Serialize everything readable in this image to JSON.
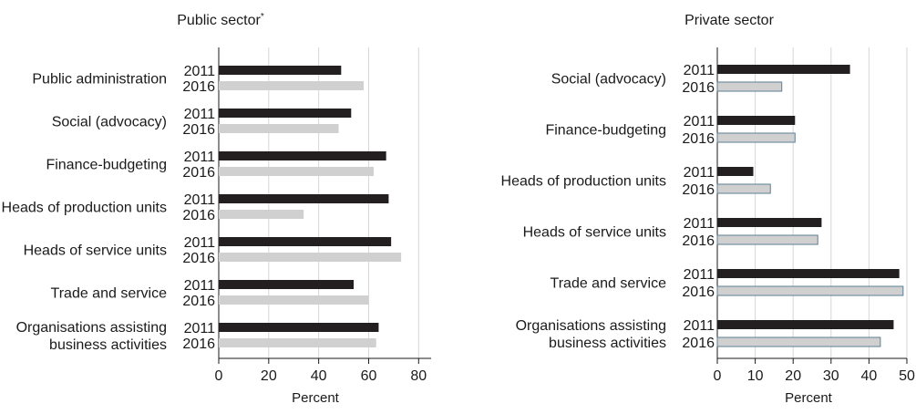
{
  "chart_data": [
    {
      "type": "bar",
      "orientation": "horizontal",
      "title": "Public sector",
      "title_marker": "*",
      "xlabel": "Percent",
      "xlim": [
        0,
        85
      ],
      "xticks": [
        0,
        20,
        40,
        60,
        80
      ],
      "grid": "vertical",
      "categories": [
        [
          "Public administration"
        ],
        [
          "Social (advocacy)"
        ],
        [
          "Finance-budgeting"
        ],
        [
          "Heads of production units"
        ],
        [
          "Heads of service units"
        ],
        [
          "Trade and service"
        ],
        [
          "Organisations assisting",
          "business activities"
        ]
      ],
      "series": [
        {
          "name": "2011",
          "color": "#231f20",
          "values": [
            49,
            53,
            67,
            68,
            69,
            54,
            64
          ]
        },
        {
          "name": "2016",
          "color": "#d0d0d0",
          "values": [
            58,
            48,
            62,
            34,
            73,
            60,
            63
          ]
        }
      ]
    },
    {
      "type": "bar",
      "orientation": "horizontal",
      "title": "Private sector",
      "xlabel": "Percent",
      "xlim": [
        0,
        50
      ],
      "xticks": [
        0,
        10,
        20,
        30,
        40,
        50
      ],
      "grid": "vertical",
      "categories": [
        [
          "Social (advocacy)"
        ],
        [
          "Finance-budgeting"
        ],
        [
          "Heads of production units"
        ],
        [
          "Heads of service units"
        ],
        [
          "Trade and service"
        ],
        [
          "Organisations assisting",
          "business activities"
        ]
      ],
      "series": [
        {
          "name": "2011",
          "color": "#231f20",
          "values": [
            35,
            20.5,
            9.5,
            27.5,
            48,
            46.5
          ]
        },
        {
          "name": "2016",
          "color": "#d0d0d0",
          "values": [
            17,
            20.5,
            14,
            26.5,
            49,
            43
          ]
        }
      ]
    }
  ]
}
